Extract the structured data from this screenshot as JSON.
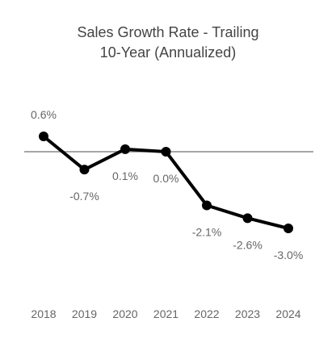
{
  "chart_data": {
    "type": "line",
    "title_lines": [
      "Sales Growth Rate - Trailing",
      "10-Year (Annualized)"
    ],
    "categories": [
      "2018",
      "2019",
      "2020",
      "2021",
      "2022",
      "2023",
      "2024"
    ],
    "series": [
      {
        "values": [
          0.6,
          -0.7,
          0.1,
          0.0,
          -2.1,
          -2.6,
          -3.0
        ],
        "data_labels": [
          "0.6%",
          "-0.7%",
          "0.1%",
          "0.0%",
          "-2.1%",
          "-2.6%",
          "-3.0%"
        ]
      }
    ],
    "ylim": [
      -3.0,
      0.6
    ],
    "baseline": 0,
    "grid": false,
    "colors": {
      "line": "#000000",
      "baseline": "#888888",
      "text": "#666666",
      "title": "#444444"
    }
  }
}
